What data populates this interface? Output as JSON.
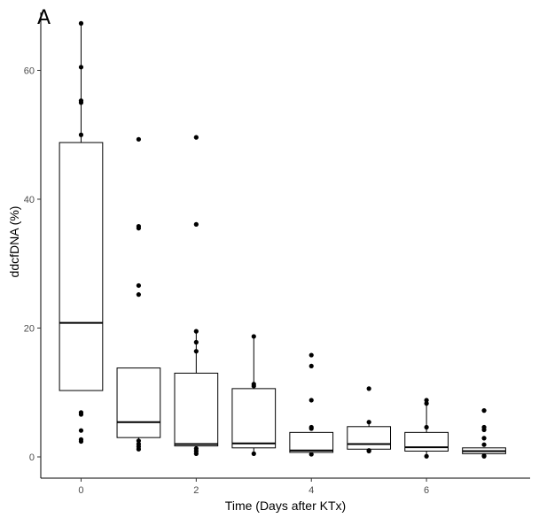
{
  "panel_tag": "A",
  "chart_data": {
    "type": "box",
    "xlabel": "Time (Days after KTx)",
    "ylabel": "ddcfDNA (%)",
    "xticks": [
      0,
      2,
      4,
      6
    ],
    "yticks": [
      0,
      20,
      40,
      60
    ],
    "xlim": [
      -0.7,
      7.8
    ],
    "ylim": [
      -3.3,
      69
    ],
    "grid": false,
    "colors": {
      "box_fill": "#ffffff",
      "line": "#000000",
      "point": "#000000",
      "tick_label": "#4d4d4d"
    },
    "groups": [
      {
        "x": 0,
        "q1": 10.3,
        "median": 20.8,
        "q3": 48.8,
        "lower_whisker": 10.3,
        "upper_whisker": 67.3,
        "outliers": [
          67.3,
          60.5,
          55.3,
          55.0,
          50.0,
          6.9,
          6.6,
          4.1,
          2.7,
          2.4
        ]
      },
      {
        "x": 1,
        "q1": 3.0,
        "median": 5.4,
        "q3": 13.8,
        "lower_whisker": 1.2,
        "upper_whisker": 13.8,
        "outliers": [
          49.3,
          35.8,
          35.5,
          26.6,
          25.2,
          2.5,
          2.0,
          1.6,
          1.2
        ]
      },
      {
        "x": 2,
        "q1": 1.7,
        "median": 2.0,
        "q3": 13.0,
        "lower_whisker": 0.5,
        "upper_whisker": 19.5,
        "outliers": [
          49.6,
          36.1,
          19.5,
          17.8,
          16.4,
          1.3,
          0.9,
          0.5
        ]
      },
      {
        "x": 3,
        "q1": 1.4,
        "median": 2.1,
        "q3": 10.6,
        "lower_whisker": 0.4,
        "upper_whisker": 18.7,
        "outliers": [
          18.7,
          11.3,
          11.0,
          0.5
        ]
      },
      {
        "x": 4,
        "q1": 0.7,
        "median": 1.0,
        "q3": 3.8,
        "lower_whisker": 0.4,
        "upper_whisker": 3.8,
        "outliers": [
          15.8,
          14.1,
          8.8,
          4.6,
          4.4,
          0.4
        ]
      },
      {
        "x": 5,
        "q1": 1.2,
        "median": 2.0,
        "q3": 4.7,
        "lower_whisker": 1.0,
        "upper_whisker": 5.4,
        "outliers": [
          10.6,
          5.4,
          1.0,
          0.9
        ]
      },
      {
        "x": 6,
        "q1": 0.9,
        "median": 1.5,
        "q3": 3.8,
        "lower_whisker": 0.1,
        "upper_whisker": 8.8,
        "outliers": [
          8.8,
          8.3,
          4.6,
          0.1
        ]
      },
      {
        "x": 7,
        "q1": 0.5,
        "median": 0.9,
        "q3": 1.4,
        "lower_whisker": 0.1,
        "upper_whisker": 1.4,
        "outliers": [
          7.2,
          4.6,
          4.2,
          2.9,
          1.9,
          0.2,
          0.1
        ]
      }
    ]
  }
}
